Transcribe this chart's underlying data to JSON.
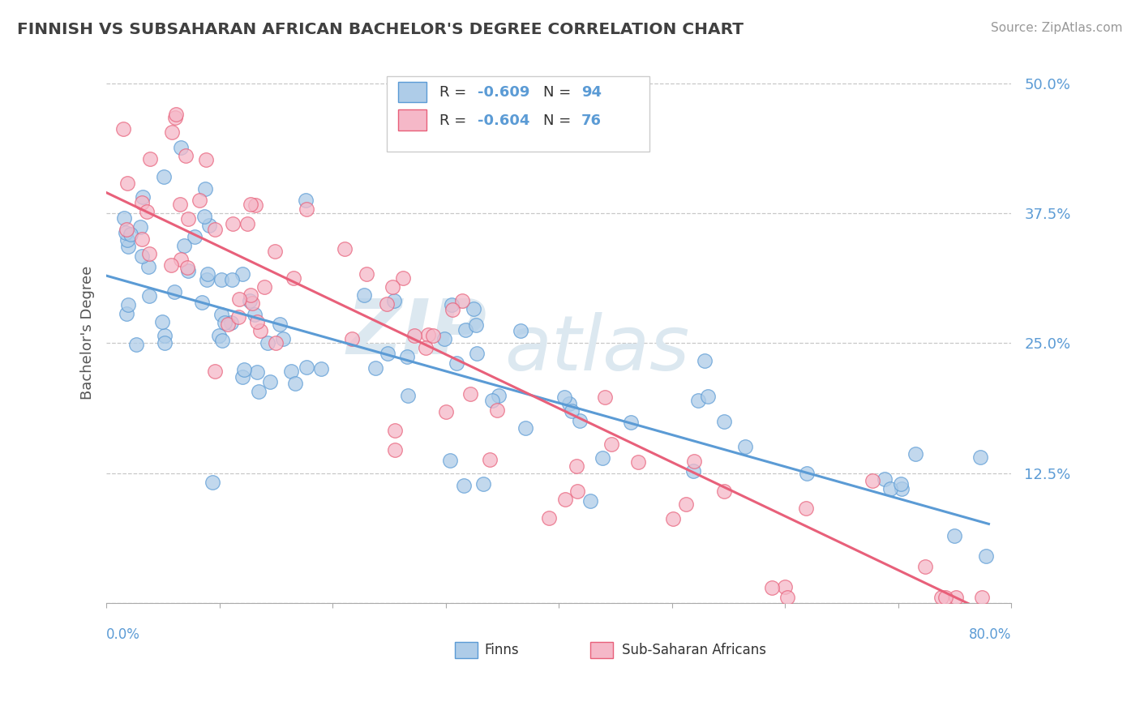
{
  "title": "FINNISH VS SUBSAHARAN AFRICAN BACHELOR'S DEGREE CORRELATION CHART",
  "source": "Source: ZipAtlas.com",
  "ylabel": "Bachelor's Degree",
  "xlim": [
    0.0,
    0.8
  ],
  "ylim": [
    0.0,
    0.52
  ],
  "yticks": [
    0.0,
    0.125,
    0.25,
    0.375,
    0.5
  ],
  "ytick_labels": [
    "",
    "12.5%",
    "25.0%",
    "37.5%",
    "50.0%"
  ],
  "finns_color": "#aecce8",
  "african_color": "#f5b8c8",
  "finns_line_color": "#5b9bd5",
  "african_line_color": "#e8607a",
  "background_color": "#ffffff",
  "grid_color": "#c8c8c8",
  "title_color": "#404040",
  "axis_label_color": "#5b9bd5",
  "finns_line_x0": 0.0,
  "finns_line_y0": 0.315,
  "finns_line_x1": 0.78,
  "finns_line_y1": 0.076,
  "african_line_x0": 0.0,
  "african_line_y0": 0.395,
  "african_line_x1": 0.78,
  "african_line_y1": -0.01
}
